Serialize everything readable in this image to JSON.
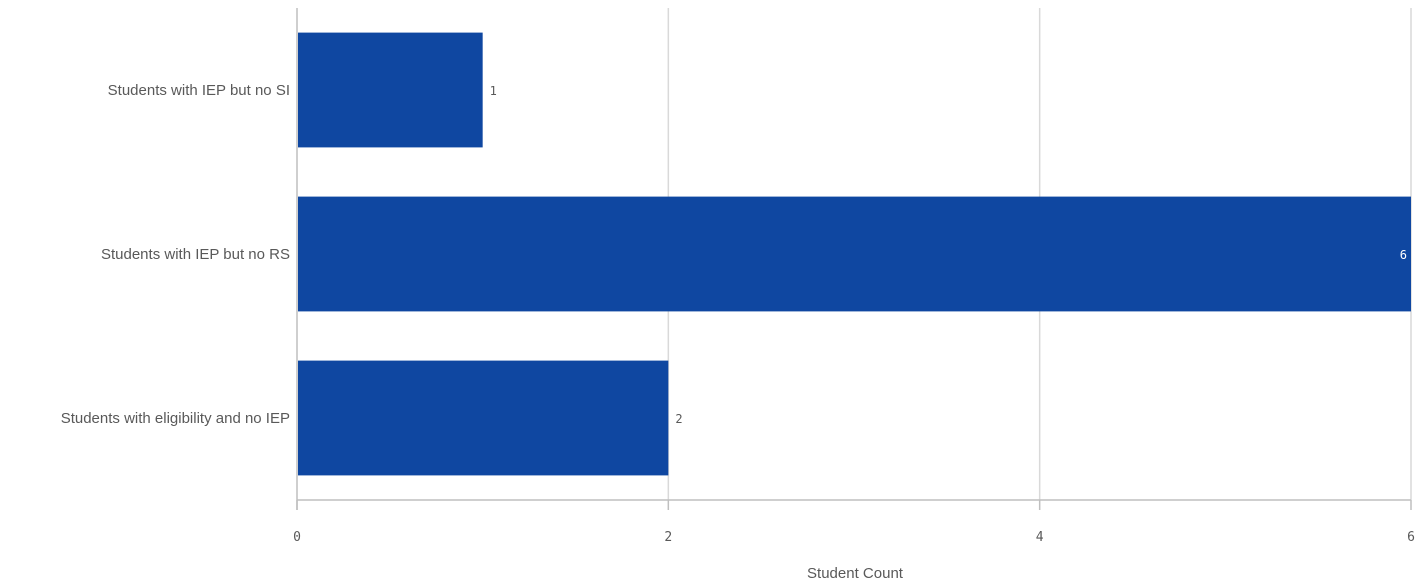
{
  "chart_data": {
    "type": "bar",
    "orientation": "horizontal",
    "categories": [
      "Students with IEP but no SI",
      "Students with IEP but no RS",
      "Students with eligibility and no IEP"
    ],
    "values": [
      1,
      6,
      2
    ],
    "data_labels": [
      "1",
      "6",
      "2"
    ],
    "xlabel": "Student Count",
    "ylabel": "",
    "xlim": [
      0,
      6
    ],
    "ticks": [
      {
        "value": 0,
        "label": "0"
      },
      {
        "value": 2,
        "label": "2"
      },
      {
        "value": 4,
        "label": "4"
      },
      {
        "value": 6,
        "label": "6"
      }
    ],
    "grid": true,
    "legend": "none",
    "colors": {
      "bar": "#0f47a1",
      "grid": "#d9d9d9",
      "axis": "#bfbfbf",
      "label_outside": "#595959",
      "label_inside": "#ffffff"
    }
  }
}
